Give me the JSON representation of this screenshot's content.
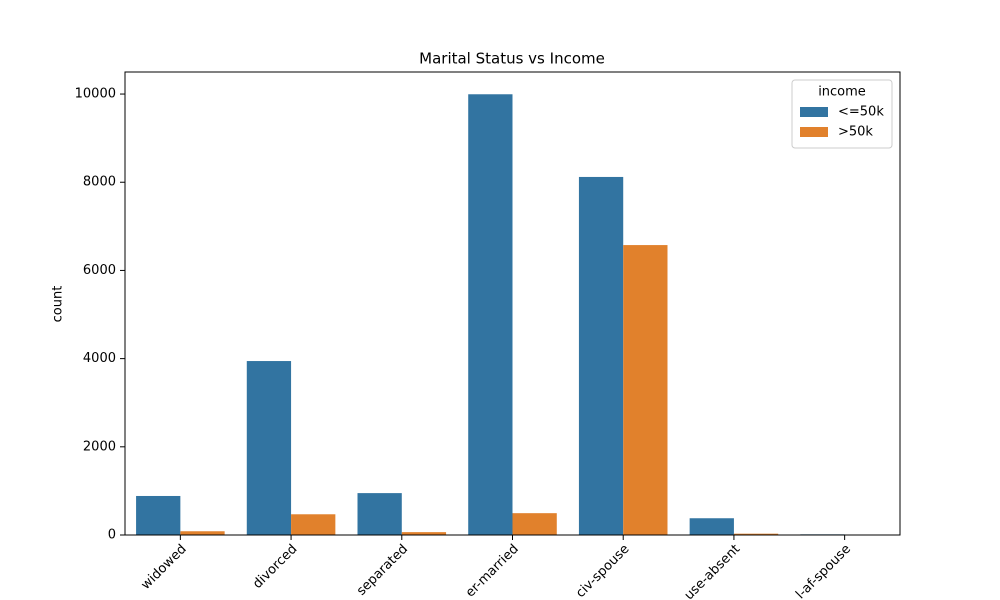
{
  "chart_data": {
    "type": "bar",
    "title": "Marital Status vs Income",
    "ylabel": "count",
    "categories": [
      "widowed",
      "divorced",
      "separated",
      "er-married",
      "civ-spouse",
      "use-absent",
      "l-af-spouse"
    ],
    "series": [
      {
        "name": "<=50k",
        "color": "#3274a1",
        "values": [
          885,
          3945,
          950,
          9995,
          8120,
          380,
          15
        ]
      },
      {
        "name": ">50k",
        "color": "#e1812c",
        "values": [
          85,
          470,
          65,
          495,
          6575,
          30,
          10
        ]
      }
    ],
    "ylim": [
      0,
      10500
    ],
    "yticks": [
      0,
      2000,
      4000,
      6000,
      8000,
      10000
    ],
    "legend_title": "income",
    "legend": "upper right"
  }
}
